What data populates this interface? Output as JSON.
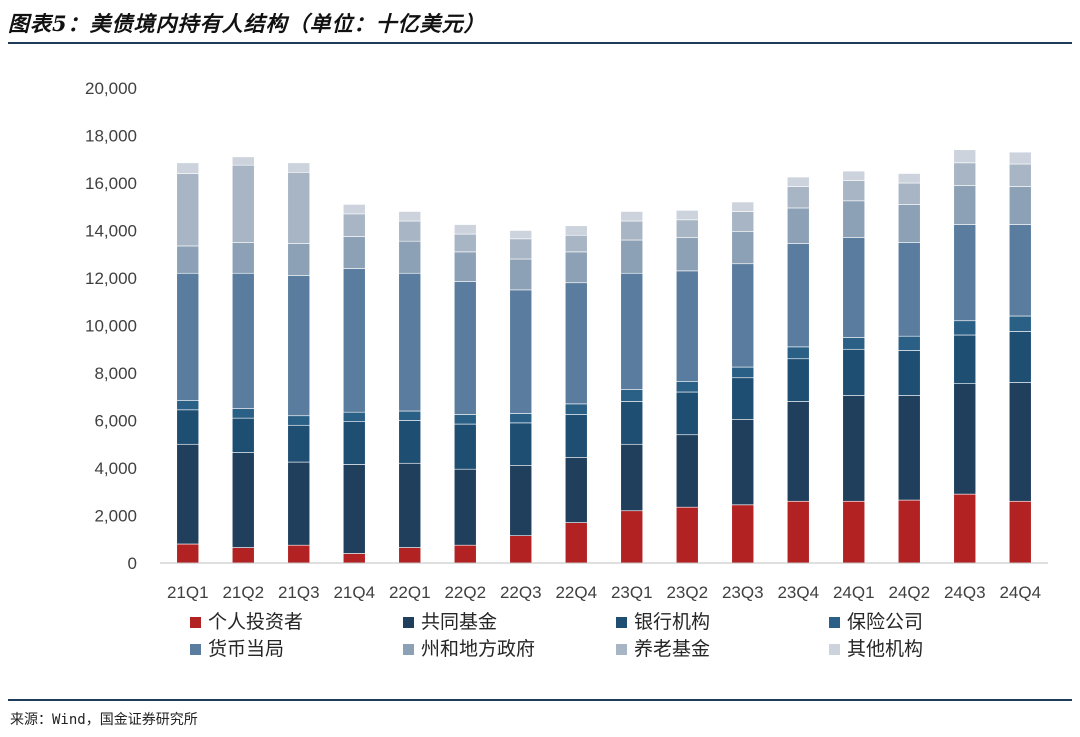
{
  "page": {
    "title": "图表5：美债境内持有人结构（单位：十亿美元）",
    "source": "来源：Wind，国金证券研究所"
  },
  "chart_data": {
    "type": "bar",
    "stacked": true,
    "categories": [
      "21Q1",
      "21Q2",
      "21Q3",
      "21Q4",
      "22Q1",
      "22Q2",
      "22Q3",
      "22Q4",
      "23Q1",
      "23Q2",
      "23Q3",
      "23Q4",
      "24Q1",
      "24Q2",
      "24Q3",
      "24Q4"
    ],
    "ylim": [
      0,
      20000
    ],
    "yticks": [
      "0",
      "2,000",
      "4,000",
      "6,000",
      "8,000",
      "10,000",
      "12,000",
      "14,000",
      "16,000",
      "18,000",
      "20,000"
    ],
    "grid": false,
    "legend_position": "bottom",
    "series": [
      {
        "name": "个人投资者",
        "color": "#b22222",
        "values": [
          800,
          650,
          750,
          400,
          650,
          750,
          1150,
          1700,
          2200,
          2350,
          2450,
          2600,
          2600,
          2650,
          2900,
          2600
        ]
      },
      {
        "name": "共同基金",
        "color": "#1f3f5c",
        "values": [
          4200,
          4000,
          3500,
          3750,
          3550,
          3200,
          2950,
          2750,
          2800,
          3050,
          3600,
          4200,
          4450,
          4400,
          4650,
          5000
        ]
      },
      {
        "name": "银行机构",
        "color": "#1f4e73",
        "values": [
          1450,
          1450,
          1550,
          1800,
          1800,
          1900,
          1800,
          1800,
          1800,
          1800,
          1750,
          1800,
          1950,
          1900,
          2050,
          2150
        ]
      },
      {
        "name": "保险公司",
        "color": "#2a5f86",
        "values": [
          400,
          400,
          400,
          400,
          400,
          400,
          400,
          450,
          500,
          450,
          450,
          500,
          500,
          600,
          600,
          650
        ]
      },
      {
        "name": "货币当局",
        "color": "#5a7c9e",
        "values": [
          5350,
          5700,
          5900,
          6050,
          5800,
          5600,
          5200,
          5100,
          4900,
          4650,
          4350,
          4350,
          4200,
          3950,
          4050,
          3850
        ]
      },
      {
        "name": "州和地方政府",
        "color": "#8da1b6",
        "values": [
          1150,
          1300,
          1350,
          1350,
          1350,
          1250,
          1300,
          1300,
          1400,
          1400,
          1350,
          1500,
          1550,
          1600,
          1650,
          1600
        ]
      },
      {
        "name": "养老基金",
        "color": "#a8b5c4",
        "values": [
          3050,
          3250,
          3000,
          950,
          850,
          750,
          850,
          700,
          800,
          750,
          850,
          900,
          850,
          900,
          950,
          950
        ]
      },
      {
        "name": "其他机构",
        "color": "#ccd3dc",
        "values": [
          450,
          350,
          400,
          400,
          400,
          400,
          350,
          400,
          400,
          400,
          400,
          400,
          400,
          400,
          550,
          500
        ]
      }
    ]
  }
}
